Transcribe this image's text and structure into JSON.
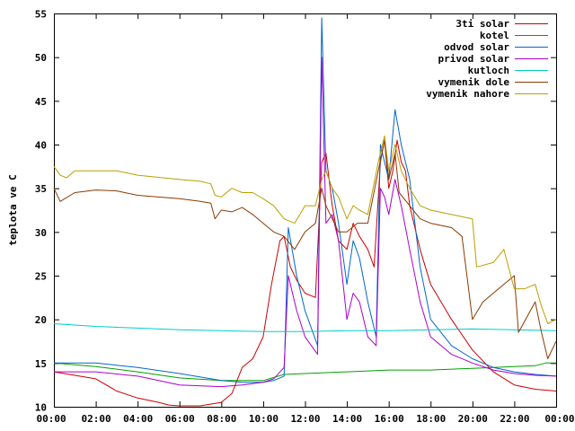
{
  "chart_data": {
    "type": "line",
    "title": "",
    "xlabel": "",
    "ylabel": "teplota ve C",
    "xlim": [
      0,
      24
    ],
    "ylim": [
      10,
      55
    ],
    "grid": false,
    "legend_position": "top-right",
    "x_ticks": [
      {
        "value": 0,
        "label": "00:00"
      },
      {
        "value": 2,
        "label": "02:00"
      },
      {
        "value": 4,
        "label": "04:00"
      },
      {
        "value": 6,
        "label": "06:00"
      },
      {
        "value": 8,
        "label": "08:00"
      },
      {
        "value": 10,
        "label": "10:00"
      },
      {
        "value": 12,
        "label": "12:00"
      },
      {
        "value": 14,
        "label": "14:00"
      },
      {
        "value": 16,
        "label": "16:00"
      },
      {
        "value": 18,
        "label": "18:00"
      },
      {
        "value": 20,
        "label": "20:00"
      },
      {
        "value": 22,
        "label": "22:00"
      },
      {
        "value": 24,
        "label": "00:00"
      }
    ],
    "y_ticks": [
      {
        "value": 10,
        "label": "10"
      },
      {
        "value": 15,
        "label": "15"
      },
      {
        "value": 20,
        "label": "20"
      },
      {
        "value": 25,
        "label": "25"
      },
      {
        "value": 30,
        "label": "30"
      },
      {
        "value": 35,
        "label": "35"
      },
      {
        "value": 40,
        "label": "40"
      },
      {
        "value": 45,
        "label": "45"
      },
      {
        "value": 50,
        "label": "50"
      },
      {
        "value": 55,
        "label": "55"
      }
    ],
    "series": [
      {
        "name": "3ti solar",
        "color": "#cc0000",
        "points": [
          [
            0,
            14.0
          ],
          [
            1,
            13.6
          ],
          [
            2,
            13.2
          ],
          [
            3,
            11.8
          ],
          [
            4,
            11.0
          ],
          [
            5,
            10.5
          ],
          [
            5.5,
            10.2
          ],
          [
            6,
            10.1
          ],
          [
            7,
            10.1
          ],
          [
            8,
            10.5
          ],
          [
            8.5,
            11.5
          ],
          [
            9,
            14.5
          ],
          [
            9.5,
            15.5
          ],
          [
            10,
            18
          ],
          [
            10.4,
            24
          ],
          [
            10.8,
            29
          ],
          [
            11,
            29.5
          ],
          [
            11.3,
            26
          ],
          [
            11.6,
            24.5
          ],
          [
            12,
            23
          ],
          [
            12.5,
            22.5
          ],
          [
            12.8,
            38
          ],
          [
            13,
            39
          ],
          [
            13.3,
            33
          ],
          [
            13.6,
            29
          ],
          [
            14,
            28
          ],
          [
            14.3,
            31
          ],
          [
            14.6,
            29.5
          ],
          [
            15,
            28
          ],
          [
            15.3,
            26
          ],
          [
            15.6,
            38
          ],
          [
            15.8,
            40.5
          ],
          [
            16,
            35
          ],
          [
            16.2,
            37
          ],
          [
            16.4,
            40.5
          ],
          [
            16.6,
            38
          ],
          [
            16.8,
            37
          ],
          [
            17,
            33
          ],
          [
            17.5,
            28
          ],
          [
            18,
            24
          ],
          [
            19,
            20
          ],
          [
            20,
            16.5
          ],
          [
            21,
            14
          ],
          [
            22,
            12.5
          ],
          [
            23,
            12
          ],
          [
            24,
            11.8
          ]
        ]
      },
      {
        "name": "kotel",
        "color": "#00a000",
        "points": [
          [
            0,
            15.0
          ],
          [
            2,
            14.6
          ],
          [
            4,
            14.0
          ],
          [
            6,
            13.3
          ],
          [
            8,
            13.0
          ],
          [
            10,
            13.0
          ],
          [
            11,
            13.7
          ],
          [
            12,
            13.8
          ],
          [
            14,
            14.0
          ],
          [
            16,
            14.2
          ],
          [
            18,
            14.2
          ],
          [
            20,
            14.4
          ],
          [
            22,
            14.6
          ],
          [
            23,
            14.7
          ],
          [
            23.5,
            15.0
          ],
          [
            24,
            15.0
          ]
        ]
      },
      {
        "name": "odvod solar",
        "color": "#0066cc",
        "points": [
          [
            0,
            15.0
          ],
          [
            2,
            15.0
          ],
          [
            4,
            14.5
          ],
          [
            6,
            13.8
          ],
          [
            8,
            13.0
          ],
          [
            9,
            12.8
          ],
          [
            10,
            12.8
          ],
          [
            10.5,
            13.0
          ],
          [
            11,
            13.5
          ],
          [
            11.2,
            30.5
          ],
          [
            11.6,
            25
          ],
          [
            12,
            21
          ],
          [
            12.6,
            17
          ],
          [
            12.8,
            54.5
          ],
          [
            13,
            37
          ],
          [
            13.3,
            35
          ],
          [
            13.6,
            31
          ],
          [
            14,
            24
          ],
          [
            14.3,
            29
          ],
          [
            14.6,
            27
          ],
          [
            15,
            22
          ],
          [
            15.4,
            18
          ],
          [
            15.6,
            40
          ],
          [
            15.8,
            38
          ],
          [
            16,
            36
          ],
          [
            16.3,
            44
          ],
          [
            16.6,
            40
          ],
          [
            17,
            36
          ],
          [
            17.5,
            26
          ],
          [
            18,
            20
          ],
          [
            19,
            17
          ],
          [
            20,
            15.5
          ],
          [
            21,
            14.5
          ],
          [
            22,
            14
          ],
          [
            23,
            13.7
          ],
          [
            24,
            13.5
          ]
        ]
      },
      {
        "name": "privod solar",
        "color": "#aa00cc",
        "points": [
          [
            0,
            14.0
          ],
          [
            2,
            14.0
          ],
          [
            4,
            13.5
          ],
          [
            5,
            13.0
          ],
          [
            6,
            12.5
          ],
          [
            8,
            12.3
          ],
          [
            9,
            12.5
          ],
          [
            10,
            12.8
          ],
          [
            10.5,
            13.2
          ],
          [
            11,
            14.5
          ],
          [
            11.2,
            25
          ],
          [
            11.6,
            21
          ],
          [
            12,
            18
          ],
          [
            12.6,
            16
          ],
          [
            12.8,
            50
          ],
          [
            13,
            31
          ],
          [
            13.3,
            32
          ],
          [
            13.6,
            29
          ],
          [
            14,
            20
          ],
          [
            14.3,
            23
          ],
          [
            14.6,
            22
          ],
          [
            15,
            18
          ],
          [
            15.4,
            17
          ],
          [
            15.6,
            35
          ],
          [
            15.8,
            34
          ],
          [
            16,
            32
          ],
          [
            16.3,
            36
          ],
          [
            16.6,
            33
          ],
          [
            17,
            28
          ],
          [
            17.5,
            22
          ],
          [
            18,
            18
          ],
          [
            19,
            16
          ],
          [
            20,
            15
          ],
          [
            21,
            14.2
          ],
          [
            22,
            13.8
          ],
          [
            23,
            13.6
          ],
          [
            24,
            13.5
          ]
        ]
      },
      {
        "name": "kutloch",
        "color": "#00cccc",
        "points": [
          [
            0,
            19.5
          ],
          [
            2,
            19.2
          ],
          [
            4,
            19.0
          ],
          [
            6,
            18.8
          ],
          [
            8,
            18.7
          ],
          [
            10,
            18.6
          ],
          [
            12,
            18.6
          ],
          [
            14,
            18.7
          ],
          [
            16,
            18.7
          ],
          [
            18,
            18.8
          ],
          [
            20,
            18.9
          ],
          [
            22,
            18.8
          ],
          [
            24,
            18.7
          ]
        ]
      },
      {
        "name": "vymenik dole",
        "color": "#8b3a00",
        "points": [
          [
            0,
            35.0
          ],
          [
            0.3,
            33.5
          ],
          [
            1,
            34.5
          ],
          [
            2,
            34.8
          ],
          [
            3,
            34.7
          ],
          [
            4,
            34.2
          ],
          [
            6,
            33.8
          ],
          [
            7,
            33.5
          ],
          [
            7.5,
            33.3
          ],
          [
            7.7,
            31.5
          ],
          [
            8,
            32.5
          ],
          [
            8.5,
            32.3
          ],
          [
            9,
            32.8
          ],
          [
            9.5,
            32.0
          ],
          [
            10,
            31.0
          ],
          [
            10.5,
            30.0
          ],
          [
            11,
            29.5
          ],
          [
            11.5,
            28
          ],
          [
            12,
            30
          ],
          [
            12.5,
            31
          ],
          [
            12.8,
            35
          ],
          [
            13,
            33
          ],
          [
            13.3,
            31.5
          ],
          [
            13.6,
            30
          ],
          [
            14,
            30
          ],
          [
            14.5,
            31
          ],
          [
            15,
            31
          ],
          [
            15.5,
            37
          ],
          [
            15.8,
            40.5
          ],
          [
            16,
            36
          ],
          [
            16.3,
            39
          ],
          [
            16.5,
            34.5
          ],
          [
            17,
            33
          ],
          [
            17.5,
            31.5
          ],
          [
            18,
            31
          ],
          [
            19,
            30.5
          ],
          [
            19.5,
            29.5
          ],
          [
            20,
            20
          ],
          [
            20.5,
            22
          ],
          [
            21,
            23
          ],
          [
            22,
            25
          ],
          [
            22.2,
            18.5
          ],
          [
            23,
            22
          ],
          [
            23.3,
            18.5
          ],
          [
            23.6,
            15.5
          ],
          [
            24,
            17.5
          ]
        ]
      },
      {
        "name": "vymenik nahore",
        "color": "#b8a000",
        "points": [
          [
            0,
            37.5
          ],
          [
            0.3,
            36.5
          ],
          [
            0.6,
            36.2
          ],
          [
            1,
            37.0
          ],
          [
            3,
            37.0
          ],
          [
            4,
            36.5
          ],
          [
            6,
            36.0
          ],
          [
            7,
            35.8
          ],
          [
            7.5,
            35.5
          ],
          [
            7.7,
            34.2
          ],
          [
            8,
            34.0
          ],
          [
            8.5,
            35.0
          ],
          [
            9,
            34.5
          ],
          [
            9.5,
            34.5
          ],
          [
            10,
            33.8
          ],
          [
            10.5,
            33.0
          ],
          [
            11,
            31.5
          ],
          [
            11.5,
            31.0
          ],
          [
            12,
            33
          ],
          [
            12.5,
            33
          ],
          [
            12.8,
            36
          ],
          [
            13,
            37
          ],
          [
            13.3,
            35
          ],
          [
            13.6,
            34
          ],
          [
            14,
            31.5
          ],
          [
            14.3,
            33
          ],
          [
            14.6,
            32.5
          ],
          [
            15,
            32
          ],
          [
            15.5,
            38
          ],
          [
            15.8,
            41
          ],
          [
            16,
            37
          ],
          [
            16.3,
            40
          ],
          [
            16.6,
            37
          ],
          [
            17,
            35
          ],
          [
            17.5,
            33
          ],
          [
            18,
            32.5
          ],
          [
            19,
            32
          ],
          [
            20,
            31.5
          ],
          [
            20.2,
            26
          ],
          [
            21,
            26.5
          ],
          [
            21.5,
            28
          ],
          [
            22,
            23.5
          ],
          [
            22.5,
            23.5
          ],
          [
            23,
            24
          ],
          [
            23.3,
            21.5
          ],
          [
            23.6,
            19.5
          ],
          [
            24,
            20.0
          ]
        ]
      }
    ]
  }
}
